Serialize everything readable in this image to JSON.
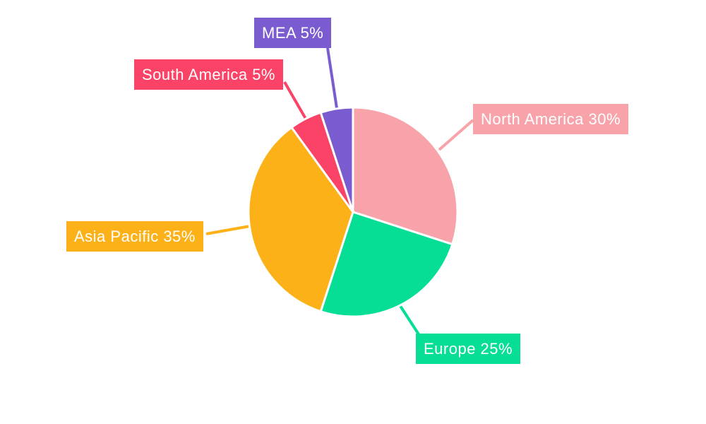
{
  "chart_data": {
    "type": "pie",
    "title": "",
    "labels": [
      "North America",
      "Europe",
      "Asia Pacific",
      "South America",
      "MEA"
    ],
    "values": [
      30,
      25,
      35,
      5,
      5
    ],
    "unit": "%",
    "display_labels": [
      "North America 30%",
      "Europe 25%",
      "Asia Pacific 35%",
      "South America 5%",
      "MEA 5%"
    ],
    "colors": [
      "#F8A3A9",
      "#06DE95",
      "#FBB117",
      "#FB4367",
      "#7A5CD0"
    ],
    "slice_stroke_color": "#FFFFFF",
    "label_text_color": "#FFFFFF",
    "start_angle": "12 o'clock",
    "direction": "clockwise",
    "legend": "none",
    "background": "#FFFFFF"
  }
}
